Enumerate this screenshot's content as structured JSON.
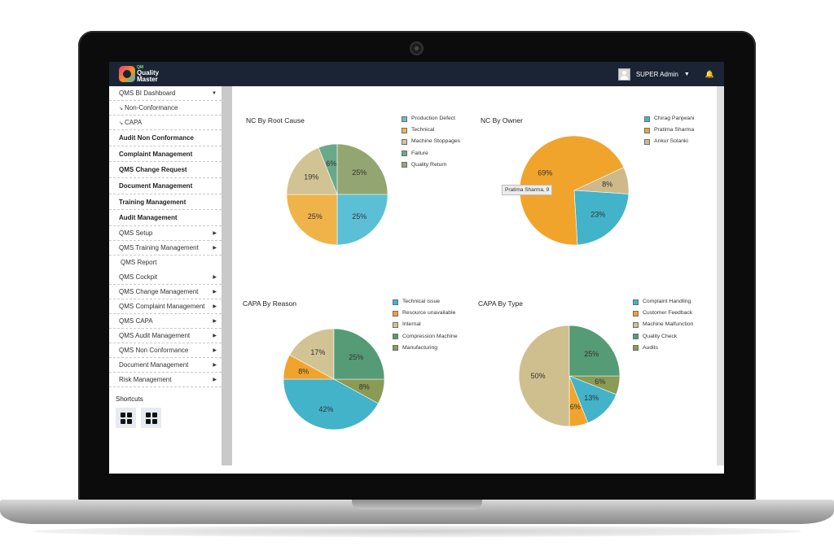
{
  "app": {
    "logo_line1": "QM",
    "logo_line2": "Quality",
    "logo_line3": "Master",
    "user_name": "SUPER Admin"
  },
  "sidebar": {
    "items": [
      {
        "label": "QMS BI Dashboard",
        "arrow": "▼",
        "style": "normal"
      },
      {
        "label": "Non-Conformance",
        "mark": "↘",
        "style": "normal"
      },
      {
        "label": "CAPA",
        "mark": "↘",
        "style": "normal"
      },
      {
        "label": "Audit Non Conformance",
        "style": "bold"
      },
      {
        "label": "Complaint Management",
        "style": "bold"
      },
      {
        "label": "QMS Change Request",
        "style": "bold"
      },
      {
        "label": "Document Management",
        "style": "bold"
      },
      {
        "label": "Training Management",
        "style": "bold"
      },
      {
        "label": "Audit Management",
        "style": "bold"
      },
      {
        "label": "QMS Setup",
        "arrow": "▶",
        "style": "normal"
      },
      {
        "label": "QMS Training Management",
        "arrow": "▶",
        "style": "normal"
      },
      {
        "label": "QMS Report",
        "style": "plain"
      },
      {
        "label": "QMS Cockpit",
        "arrow": "▶",
        "style": "normal"
      },
      {
        "label": "QMS Change Management",
        "arrow": "▶",
        "style": "normal"
      },
      {
        "label": "QMS Complaint Management",
        "arrow": "▶",
        "style": "normal"
      },
      {
        "label": "QMS CAPA",
        "arrow": "▶",
        "style": "normal"
      },
      {
        "label": "QMS Audit Management",
        "arrow": "▶",
        "style": "normal"
      },
      {
        "label": "QMS Non Conformance",
        "arrow": "▶",
        "style": "normal"
      },
      {
        "label": "Document Management",
        "arrow": "▶",
        "style": "normal"
      },
      {
        "label": "Risk Management",
        "arrow": "▶",
        "style": "normal"
      }
    ],
    "shortcuts_title": "Shortcuts"
  },
  "tooltip": "Pratima Sharma, 9",
  "chart_data": [
    {
      "type": "pie",
      "title": "NC By Root Cause",
      "categories": [
        "Production Defect",
        "Technical",
        "Machine Stoppages",
        "Failure",
        "Quality Return"
      ],
      "values": [
        25,
        25,
        19,
        6,
        25
      ],
      "labels": [
        "25%",
        "25%",
        "19%",
        "6%",
        "25%"
      ],
      "colors": [
        "#5bc0d6",
        "#efb34a",
        "#d2c394",
        "#6aa88a",
        "#93a671"
      ]
    },
    {
      "type": "pie",
      "title": "NC By Owner",
      "categories": [
        "Chirag Panjwani",
        "Pratima Sharma",
        "Ankur Solanki"
      ],
      "values": [
        23,
        69,
        8
      ],
      "labels": [
        "23%",
        "69%",
        "8%"
      ],
      "colors": [
        "#42b3c9",
        "#f1a42c",
        "#cdb98a"
      ]
    },
    {
      "type": "pie",
      "title": "CAPA By Reason",
      "categories": [
        "Technical issue",
        "Resource unavailable",
        "Internal",
        "Compression Machine",
        "Manufacturing"
      ],
      "values": [
        42,
        8,
        17,
        25,
        8
      ],
      "labels": [
        "42%",
        "8%",
        "17%",
        "25%",
        "8%"
      ],
      "colors": [
        "#42b3c9",
        "#f1a42c",
        "#d2c394",
        "#559b76",
        "#8b9a54"
      ]
    },
    {
      "type": "pie",
      "title": "CAPA By Type",
      "categories": [
        "Complaint Handling",
        "Customer Feedback",
        "Machine Malfunction",
        "Quality Check",
        "Audits"
      ],
      "values": [
        13,
        6,
        50,
        25,
        6
      ],
      "labels": [
        "13%",
        "6%",
        "50%",
        "25%",
        "6%"
      ],
      "colors": [
        "#42b3c9",
        "#f1a42c",
        "#cfbf8f",
        "#559b76",
        "#8b9a54"
      ]
    }
  ]
}
